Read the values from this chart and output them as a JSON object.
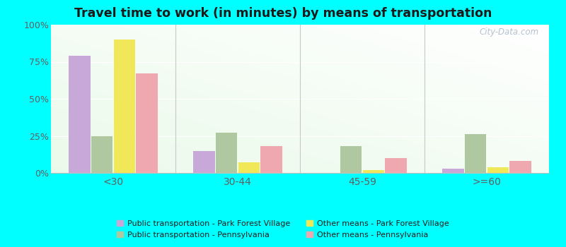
{
  "title": "Travel time to work (in minutes) by means of transportation",
  "categories": [
    "<30",
    "30-44",
    "45-59",
    ">=60"
  ],
  "series": {
    "pub_pfv": [
      79,
      15,
      0,
      3
    ],
    "pub_pa": [
      25,
      27,
      18,
      26
    ],
    "other_pfv": [
      90,
      7,
      2,
      4
    ],
    "other_pa": [
      67,
      18,
      10,
      8
    ]
  },
  "colors": {
    "pub_pfv": "#c8a8d8",
    "pub_pa": "#b0c8a0",
    "other_pfv": "#f0e858",
    "other_pa": "#f0a8b0"
  },
  "legend_labels": {
    "pub_pfv": "Public transportation - Park Forest Village",
    "pub_pa": "Public transportation - Pennsylvania",
    "other_pfv": "Other means - Park Forest Village",
    "other_pa": "Other means - Pennsylvania"
  },
  "ylim": [
    0,
    100
  ],
  "yticks": [
    0,
    25,
    50,
    75,
    100
  ],
  "ytick_labels": [
    "0%",
    "25%",
    "50%",
    "75%",
    "100%"
  ],
  "background_color_tl": "#e8f8f0",
  "background_color_br": "#d8f0e0",
  "outer_background": "#00ffff",
  "watermark": "City-Data.com",
  "tick_color": "#606060",
  "title_color": "#1a1a1a"
}
